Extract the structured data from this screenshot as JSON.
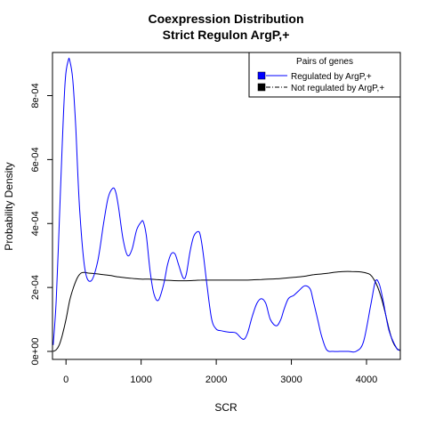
{
  "chart_data": {
    "type": "line",
    "title": "Coexpression Distribution",
    "subtitle": "Strict Regulon ArgP,+",
    "xlabel": "SCR",
    "ylabel": "Probability Density",
    "xlim": [
      -180,
      4450
    ],
    "ylim": [
      -2.5e-05,
      0.000935
    ],
    "xticks": [
      0,
      1000,
      2000,
      3000,
      4000
    ],
    "xtick_labels": [
      "0",
      "1000",
      "2000",
      "3000",
      "4000"
    ],
    "yticks": [
      0,
      0.0002,
      0.0004,
      0.0006,
      0.0008
    ],
    "ytick_labels": [
      "0e+00",
      "2e-04",
      "4e-04",
      "6e-04",
      "8e-04"
    ],
    "grid": false,
    "legend": {
      "title": "Pairs of genes",
      "position": "top-right",
      "entries": [
        "Regulated by  ArgP,+",
        "Not regulated by  ArgP,+"
      ]
    },
    "series": [
      {
        "name": "Regulated by  ArgP,+",
        "color": "#0000ff",
        "x": [
          -170,
          -130,
          -90,
          -50,
          -10,
          30,
          50,
          90,
          130,
          180,
          250,
          330,
          420,
          500,
          560,
          620,
          660,
          700,
          760,
          820,
          880,
          940,
          1000,
          1030,
          1070,
          1120,
          1170,
          1230,
          1300,
          1350,
          1400,
          1450,
          1500,
          1560,
          1600,
          1650,
          1700,
          1760,
          1790,
          1830,
          1880,
          1940,
          2000,
          2060,
          2120,
          2180,
          2260,
          2340,
          2380,
          2420,
          2480,
          2540,
          2600,
          2660,
          2720,
          2800,
          2860,
          2900,
          2960,
          3030,
          3100,
          3180,
          3250,
          3290,
          3350,
          3400,
          3470,
          3560,
          3650,
          3760,
          3860,
          3960,
          4060,
          4120,
          4170,
          4220,
          4300,
          4400,
          4440
        ],
        "y": [
          2e-05,
          0.00016,
          0.0004,
          0.00065,
          0.00085,
          0.00091,
          0.00091,
          0.00085,
          0.0007,
          0.00045,
          0.00026,
          0.00022,
          0.00028,
          0.0004,
          0.00048,
          0.00051,
          0.0005,
          0.00045,
          0.00035,
          0.0003,
          0.00032,
          0.00038,
          0.000405,
          0.000405,
          0.00036,
          0.00025,
          0.00018,
          0.00016,
          0.00021,
          0.00027,
          0.000305,
          0.000305,
          0.00027,
          0.00023,
          0.00024,
          0.00031,
          0.00036,
          0.000375,
          0.00036,
          0.0003,
          0.0002,
          0.0001,
          7e-05,
          6.5e-05,
          6.2e-05,
          6e-05,
          5.8e-05,
          4e-05,
          4e-05,
          6e-05,
          0.00011,
          0.00015,
          0.000165,
          0.00015,
          0.0001,
          8e-05,
          0.0001,
          0.00013,
          0.000165,
          0.000175,
          0.00019,
          0.000205,
          0.000195,
          0.00016,
          0.0001,
          5e-05,
          5e-06,
          0.0,
          0.0,
          0.0,
          0.0,
          3e-05,
          0.00015,
          0.00022,
          0.00021,
          0.00016,
          6.5e-05,
          1e-05,
          5e-06
        ]
      },
      {
        "name": "Not regulated by  ArgP,+",
        "color": "#000000",
        "x": [
          -170,
          -130,
          -90,
          -50,
          0,
          50,
          100,
          150,
          200,
          250,
          300,
          400,
          500,
          600,
          700,
          800,
          900,
          1000,
          1100,
          1200,
          1300,
          1400,
          1500,
          1600,
          1700,
          1800,
          1900,
          2000,
          2100,
          2200,
          2300,
          2400,
          2500,
          2600,
          2700,
          2800,
          2900,
          3000,
          3100,
          3200,
          3300,
          3400,
          3500,
          3600,
          3700,
          3800,
          3900,
          4000,
          4050,
          4100,
          4150,
          4200,
          4250,
          4300,
          4350,
          4400,
          4450
        ],
        "y": [
          0.0,
          5e-06,
          2e-05,
          5e-05,
          0.0001,
          0.00016,
          0.0002,
          0.00023,
          0.000245,
          0.000247,
          0.000245,
          0.000243,
          0.00024,
          0.000237,
          0.000233,
          0.00023,
          0.000228,
          0.000226,
          0.000226,
          0.000225,
          0.000223,
          0.000222,
          0.000221,
          0.000221,
          0.000222,
          0.000223,
          0.000223,
          0.000223,
          0.000223,
          0.000223,
          0.000223,
          0.000223,
          0.000224,
          0.000225,
          0.000226,
          0.000227,
          0.000229,
          0.000231,
          0.000233,
          0.000236,
          0.00024,
          0.000242,
          0.000245,
          0.000248,
          0.00025,
          0.00025,
          0.000249,
          0.000245,
          0.00024,
          0.000225,
          0.0002,
          0.000165,
          0.00012,
          7e-05,
          3e-05,
          1e-05,
          2e-06
        ]
      }
    ]
  }
}
